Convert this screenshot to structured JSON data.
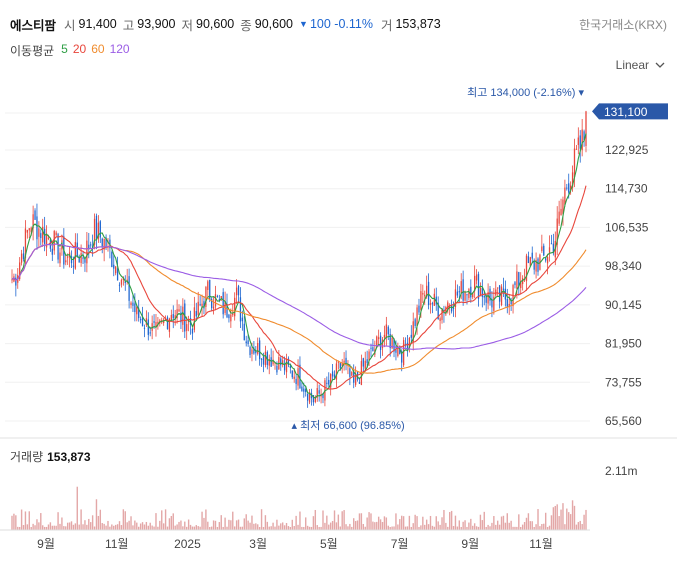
{
  "header": {
    "name": "에스티팜",
    "open_label": "시",
    "open": "91,400",
    "high_label": "고",
    "high": "93,900",
    "low_label": "저",
    "low": "90,600",
    "close_label": "종",
    "close": "90,600",
    "change": "100",
    "change_pct": "-0.11%",
    "volume_label": "거",
    "volume": "153,873",
    "exchange": "한국거래소(KRX)"
  },
  "ma_legend": {
    "title": "이동평균",
    "items": [
      {
        "label": "5",
        "color": "#2e9e44"
      },
      {
        "label": "20",
        "color": "#e8463c"
      },
      {
        "label": "60",
        "color": "#f08c2e"
      },
      {
        "label": "120",
        "color": "#9b5de5"
      }
    ]
  },
  "scale_selector": {
    "label": "Linear"
  },
  "volume_panel": {
    "title": "거래량",
    "value": "153,873",
    "axis_label": "2.11m"
  },
  "chart_data": {
    "type": "candlestick",
    "colors": {
      "up": "#e8463c",
      "down": "#1e66d0",
      "ma5": "#2e9e44",
      "ma20": "#e8463c",
      "ma60": "#f08c2e",
      "ma120": "#9b5de5",
      "volume": "#e3a7a7",
      "grid": "#f0f0f0",
      "last_price_tag": "#2a58a8"
    },
    "y_ticks": [
      "122,925",
      "114,730",
      "106,535",
      "98,340",
      "90,145",
      "81,950",
      "73,755",
      "65,560"
    ],
    "y_tick_values": [
      122925,
      114730,
      106535,
      98340,
      90145,
      81950,
      73755,
      65560
    ],
    "x_ticks": [
      "9월",
      "11월",
      "2025",
      "3월",
      "5월",
      "7월",
      "9월",
      "11월"
    ],
    "x_tick_months": [
      "2024-09",
      "2024-11",
      "2025-01",
      "2025-03",
      "2025-05",
      "2025-07",
      "2025-09",
      "2025-11"
    ],
    "last_price": {
      "label": "131,100",
      "value": 131100
    },
    "max_marker": {
      "label": "최고 134,000 (-2.16%)",
      "value": 134000,
      "month": "2025-12"
    },
    "min_marker": {
      "label": "최저 66,600 (96.85%)",
      "value": 66600,
      "month": "2025-04"
    },
    "close_path": [
      [
        "2024-07",
        92000
      ],
      [
        "2024-08",
        96000
      ],
      [
        "2024-08",
        108000
      ],
      [
        "2024-09",
        104000
      ],
      [
        "2024-09",
        100000
      ],
      [
        "2024-10",
        101000
      ],
      [
        "2024-10",
        106000
      ],
      [
        "2024-10",
        103000
      ],
      [
        "2024-11",
        96000
      ],
      [
        "2024-11",
        88000
      ],
      [
        "2024-12",
        84000
      ],
      [
        "2024-12",
        89000
      ],
      [
        "2025-01",
        86000
      ],
      [
        "2025-01",
        93000
      ],
      [
        "2025-02",
        89000
      ],
      [
        "2025-02",
        92000
      ],
      [
        "2025-02",
        82000
      ],
      [
        "2025-03",
        80000
      ],
      [
        "2025-03",
        78000
      ],
      [
        "2025-04",
        75000
      ],
      [
        "2025-04",
        70000
      ],
      [
        "2025-05",
        74000
      ],
      [
        "2025-05",
        78000
      ],
      [
        "2025-05",
        73000
      ],
      [
        "2025-06",
        79000
      ],
      [
        "2025-06",
        84000
      ],
      [
        "2025-07",
        80000
      ],
      [
        "2025-07",
        86000
      ],
      [
        "2025-07",
        93000
      ],
      [
        "2025-08",
        89000
      ],
      [
        "2025-08",
        92000
      ],
      [
        "2025-09",
        95000
      ],
      [
        "2025-09",
        91000
      ],
      [
        "2025-10",
        92000
      ],
      [
        "2025-10",
        98000
      ],
      [
        "2025-11",
        100000
      ],
      [
        "2025-11",
        104000
      ],
      [
        "2025-11",
        115000
      ],
      [
        "2025-12",
        124000
      ],
      [
        "2025-12",
        131100
      ]
    ]
  }
}
